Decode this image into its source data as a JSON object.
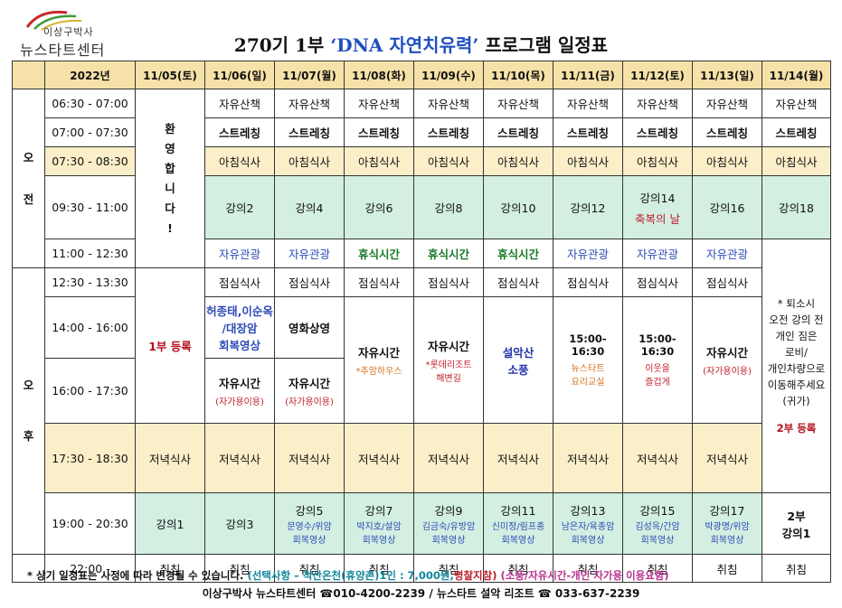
{
  "logo": {
    "sub": "이상구박사",
    "main": "뉴스타트센터"
  },
  "title": {
    "prefix": "270기 1부",
    "quoted": "‘DNA 자연치유력’",
    "suffix": "프로그램 일정표"
  },
  "header": {
    "year": "2022년",
    "days": [
      "11/05(토)",
      "11/06(일)",
      "11/07(월)",
      "11/08(화)",
      "11/09(수)",
      "11/10(목)",
      "11/11(금)",
      "11/12(토)",
      "11/13(일)",
      "11/14(월)"
    ]
  },
  "periods": {
    "am": [
      "오",
      "전"
    ],
    "pm": [
      "오",
      "후"
    ]
  },
  "times": [
    "06:30 - 07:00",
    "07:00 - 07:30",
    "07:30 - 08:30",
    "09:30 - 11:00",
    "11:00 - 12:30",
    "12:30 - 13:30",
    "14:00 - 16:00",
    "16:00 - 17:30",
    "17:30 - 18:30",
    "19:00 - 20:30",
    "22:00 -"
  ],
  "day1": {
    "welcome": [
      "환",
      "영",
      "합",
      "니",
      "다",
      "!"
    ],
    "register": "1부 등록"
  },
  "walk": "자유산책",
  "stretch": "스트레칭",
  "breakfast": "아침식사",
  "lectures_am": [
    "강의2",
    "강의4",
    "강의6",
    "강의8",
    "강의10",
    "강의12",
    "강의14",
    "강의16",
    "강의18"
  ],
  "festival": "축복의 날",
  "tour": "자유관광",
  "rest": "휴식시간",
  "lunch": "점심식사",
  "afternoon": {
    "d06_top": [
      "허종태,이순옥",
      "/대장암",
      "회복영상"
    ],
    "movie": "영화상영",
    "free": "자유시간",
    "own_car": "(자가용이용)",
    "d08_sub": "*추암하우스",
    "d09_sub": [
      "*롯데리조트",
      "해변길"
    ],
    "d10": [
      "설악산",
      "소풍"
    ],
    "time_1500": "15:00-16:30",
    "d11_sub": [
      "뉴스타트",
      "요리교실"
    ],
    "d12_sub": [
      "이웃을",
      "즐겁게"
    ],
    "d14_note": [
      "* 퇴소시",
      "오전 강의 전",
      "개인 짐은",
      "로비/",
      "개인차량으로",
      "이동해주세요",
      "(귀가)"
    ],
    "d14_register": "2부 등록"
  },
  "dinner": "저녁식사",
  "evening": {
    "lectures": [
      "강의1",
      "강의3",
      "강의5",
      "강의7",
      "강의9",
      "강의11",
      "강의13",
      "강의15",
      "강의17"
    ],
    "subs": [
      null,
      null,
      [
        "문영수/위암",
        "회복영상"
      ],
      [
        "박지호/설암",
        "회복영상"
      ],
      [
        "김금숙/유방암",
        "회복영상"
      ],
      [
        "신미정/림프종",
        "회복영상"
      ],
      [
        "남은자/육종암",
        "회복영상"
      ],
      [
        "김성옥/간암",
        "회복영상"
      ],
      [
        "박광명/위암",
        "회복영상"
      ]
    ],
    "last": [
      "2부",
      "강의1"
    ]
  },
  "sleep": "취침",
  "footer": {
    "note_a": "* 상기 일정표는 사정에 따라 변경될 수 있습니다.",
    "note_b": "(선택사항 – 척산온천(휴양촌)1인 : 7,000원,",
    "note_c": "명찰지참)",
    "note_d": "(소풍/자유시간-개인 자가용 이용요함)",
    "contact": "이상구박사 뉴스타트센터 ☎010-4200-2239 /  뉴스타트 설악 리조트 ☎ 033-637-2239"
  }
}
